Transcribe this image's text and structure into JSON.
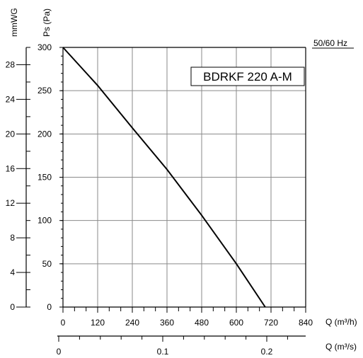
{
  "chart_data": {
    "type": "line",
    "model_label": "BDRKF 220 A-M",
    "frequency_label": "50/60 Hz",
    "ylabel_pa": "Ps (Pa)",
    "ylabel_mmwg": "mmWG",
    "xlabel_m3h": "Q (m³/h)",
    "xlabel_m3s": "Q (m³/s)",
    "xlim_m3h": [
      0,
      840
    ],
    "ylim_pa": [
      0,
      300
    ],
    "ylim_mmwg": [
      0,
      30
    ],
    "x_ticks_m3h": [
      "0",
      "120",
      "240",
      "360",
      "480",
      "600",
      "720",
      "840"
    ],
    "y_ticks_pa": [
      "0",
      "50",
      "100",
      "150",
      "200",
      "250",
      "300"
    ],
    "y_ticks_mmwg": [
      "0",
      "4",
      "8",
      "12",
      "16",
      "20",
      "24",
      "28"
    ],
    "x_ticks_m3s": [
      "0",
      "0.1",
      "0.2"
    ],
    "grid": true,
    "series": [
      {
        "x": [
          0,
          120,
          240,
          360,
          480,
          600,
          700
        ],
        "y": [
          300,
          256,
          207,
          159,
          106,
          50,
          0
        ]
      }
    ]
  }
}
